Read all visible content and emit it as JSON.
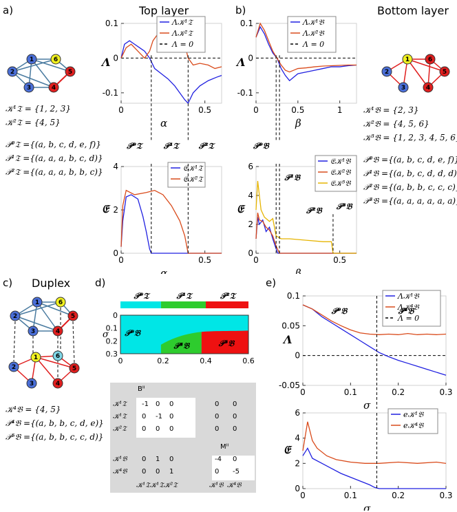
{
  "panels": {
    "a": {
      "label": "a)",
      "title": "Top layer"
    },
    "b": {
      "label": "b)",
      "title": "Bottom layer"
    },
    "c": {
      "label": "c)",
      "title": "Duplex"
    },
    "d": {
      "label": "d)"
    },
    "e": {
      "label": "e)"
    }
  },
  "network_top": {
    "nodes": [
      "1",
      "2",
      "3",
      "4",
      "5",
      "6"
    ]
  },
  "network_bottom": {
    "nodes": [
      "1",
      "2",
      "3",
      "4",
      "5",
      "6"
    ]
  },
  "network_duplex": {
    "top_nodes": [
      "1",
      "2",
      "3",
      "4",
      "5",
      "6"
    ],
    "bottom_nodes": [
      "1",
      "2",
      "3",
      "4",
      "5",
      "6"
    ]
  },
  "text_top": {
    "K1": "𝒦¹𝔗 = {1, 2, 3}",
    "K2": "𝒦²𝔗 = {4, 5}",
    "P0": "𝒫⁰𝔗 ={(a, b, c, d, e, f)}",
    "P1": "𝒫¹𝔗 ={(a, a, a, b, c, d)}",
    "P2": "𝒫²𝔗 ={(a, a, a, b, b, c)}"
  },
  "text_bottom": {
    "K1": "𝒦¹𝔅 = {2, 3}",
    "K2": "𝒦²𝔅 = {4, 5, 6}",
    "K3": "𝒦³𝔅 = {1, 2, 3, 4, 5, 6}",
    "P0": "𝒫⁰𝔅 ={(a, b, c, d, e, f)}",
    "P1": "𝒫¹𝔅 ={(a, b, c, d, d, d)}",
    "P2": "𝒫²𝔅 ={(a, b, b, c, c, c)}",
    "P3": "𝒫³𝔅 ={(a, a, a, a, a, a)}"
  },
  "text_duplex": {
    "K4": "𝒦⁴𝔅 = {4, 5}",
    "P4": "𝒫⁴𝔅 ={(a, b, b, c, d, e)}",
    "P5": "𝒫⁵𝔅 ={(a, b, b, c, c, d)}"
  },
  "colors": {
    "blue": "#1f1fe0",
    "red": "#d94a1a",
    "yellow": "#e6b400",
    "cyan": "#00e6e6",
    "green": "#2ecc2e",
    "red2": "#ee1111",
    "node_blue": "#4a6fd8",
    "node_red": "#e01e1e",
    "node_yellow": "#f0f020",
    "node_cyan": "#7fd6e6"
  },
  "chart_data": [
    {
      "id": "top-lambda",
      "type": "line",
      "xlabel": "α",
      "ylabel": "Λ",
      "xlim": [
        0,
        0.6
      ],
      "ylim": [
        -0.13,
        0.1
      ],
      "xticks": [
        "0",
        "0.5"
      ],
      "yticks": [
        "0.1",
        "0",
        "-0.1"
      ],
      "legend": [
        "Λ𝒦¹𝔗",
        "Λ𝒦²𝔗",
        "Λ = 0"
      ],
      "series": [
        {
          "name": "Λ𝒦¹𝔗",
          "color": "#1f1fe0",
          "x": [
            0,
            0.02,
            0.05,
            0.08,
            0.11,
            0.14,
            0.17,
            0.2,
            0.24,
            0.28,
            0.32,
            0.35,
            0.38,
            0.4,
            0.43,
            0.47,
            0.52,
            0.57,
            0.6
          ],
          "y": [
            0.0,
            0.04,
            0.05,
            0.04,
            0.03,
            0.02,
            0.0,
            -0.03,
            -0.045,
            -0.06,
            -0.08,
            -0.1,
            -0.12,
            -0.13,
            -0.1,
            -0.08,
            -0.065,
            -0.055,
            -0.05
          ]
        },
        {
          "name": "Λ𝒦²𝔗",
          "color": "#d94a1a",
          "x": [
            0,
            0.03,
            0.06,
            0.1,
            0.14,
            0.17,
            0.19,
            0.22,
            0.26,
            0.3,
            0.34,
            0.38,
            0.4,
            0.43,
            0.47,
            0.52,
            0.56,
            0.6
          ],
          "y": [
            0.0,
            0.03,
            0.04,
            0.02,
            0.0,
            0.02,
            0.05,
            0.07,
            0.075,
            0.07,
            0.06,
            0.04,
            0.0,
            -0.02,
            -0.015,
            -0.02,
            -0.03,
            -0.025
          ]
        }
      ]
    },
    {
      "id": "top-entropy",
      "type": "line",
      "xlabel": "α",
      "ylabel": "𝔈",
      "xlim": [
        0,
        0.6
      ],
      "ylim": [
        0,
        4
      ],
      "xticks": [
        "0",
        "0.5"
      ],
      "yticks": [
        "4",
        "2",
        "0"
      ],
      "legend": [
        "𝔈𝒦¹𝔗",
        "𝔈𝒦²𝔗"
      ],
      "phase_labels": [
        "𝒫⁰𝔗",
        "𝒫¹𝔗",
        "𝒫²𝔗"
      ],
      "series": [
        {
          "name": "𝔈𝒦¹𝔗",
          "color": "#1f1fe0",
          "x": [
            0,
            0.01,
            0.03,
            0.06,
            0.1,
            0.13,
            0.15,
            0.17,
            0.18,
            0.6
          ],
          "y": [
            0.3,
            1.5,
            2.6,
            2.7,
            2.5,
            1.7,
            1.0,
            0.2,
            0.0,
            0.0
          ]
        },
        {
          "name": "𝔈𝒦²𝔗",
          "color": "#d94a1a",
          "x": [
            0,
            0.01,
            0.03,
            0.08,
            0.15,
            0.2,
            0.25,
            0.3,
            0.35,
            0.38,
            0.4,
            0.6
          ],
          "y": [
            0.3,
            2.2,
            2.9,
            2.7,
            2.8,
            2.9,
            2.7,
            2.2,
            1.5,
            0.8,
            0.0,
            0.0
          ]
        }
      ]
    },
    {
      "id": "bottom-lambda",
      "type": "line",
      "xlabel": "β",
      "ylabel": "Λ",
      "xlim": [
        0,
        1.2
      ],
      "ylim": [
        -0.13,
        0.1
      ],
      "xticks": [
        "0",
        "0.5",
        "1"
      ],
      "yticks": [
        "0.1",
        "0",
        "-0.1"
      ],
      "legend": [
        "Λ𝒦¹𝔅",
        "Λ𝒦²𝔅",
        "Λ = 0"
      ],
      "series": [
        {
          "name": "Λ𝒦¹𝔅",
          "color": "#1f1fe0",
          "x": [
            0,
            0.05,
            0.1,
            0.15,
            0.2,
            0.25,
            0.3,
            0.35,
            0.4,
            0.45,
            0.5,
            0.6,
            0.7,
            0.8,
            0.9,
            1.0,
            1.1,
            1.2
          ],
          "y": [
            0.06,
            0.09,
            0.07,
            0.04,
            0.015,
            0.0,
            -0.03,
            -0.05,
            -0.065,
            -0.055,
            -0.045,
            -0.04,
            -0.035,
            -0.03,
            -0.025,
            -0.025,
            -0.022,
            -0.02
          ]
        },
        {
          "name": "Λ𝒦²𝔅",
          "color": "#d94a1a",
          "x": [
            0,
            0.05,
            0.1,
            0.15,
            0.2,
            0.25,
            0.3,
            0.35,
            0.4,
            0.45,
            0.5,
            0.6,
            0.7,
            0.8,
            0.9,
            1.0,
            1.1,
            1.2
          ],
          "y": [
            0.06,
            0.1,
            0.08,
            0.05,
            0.02,
            0.0,
            -0.02,
            -0.035,
            -0.04,
            -0.035,
            -0.03,
            -0.028,
            -0.025,
            -0.023,
            -0.022,
            -0.021,
            -0.02,
            -0.02
          ]
        }
      ]
    },
    {
      "id": "bottom-entropy",
      "type": "line",
      "xlabel": "β",
      "ylabel": "𝔈",
      "xlim": [
        0,
        0.6
      ],
      "ylim": [
        0,
        6
      ],
      "xticks": [
        "0",
        "0.5"
      ],
      "yticks": [
        "6",
        "4",
        "2",
        "0"
      ],
      "legend": [
        "𝔈𝒦¹𝔅",
        "𝔈𝒦²𝔅",
        "𝔈𝒦³𝔅"
      ],
      "phase_labels": [
        "𝒫⁰𝔅",
        "𝒫¹𝔅",
        "𝒫²𝔅",
        "𝒫³𝔅"
      ],
      "series": [
        {
          "name": "𝔈𝒦¹𝔅",
          "color": "#1f1fe0",
          "x": [
            0,
            0.01,
            0.02,
            0.04,
            0.06,
            0.08,
            0.1,
            0.12,
            0.13,
            0.6
          ],
          "y": [
            1.0,
            2.5,
            2.0,
            2.3,
            1.5,
            1.8,
            1.0,
            0.3,
            0.0,
            0.0
          ]
        },
        {
          "name": "𝔈𝒦²𝔅",
          "color": "#d94a1a",
          "x": [
            0,
            0.01,
            0.02,
            0.04,
            0.06,
            0.08,
            0.1,
            0.12,
            0.14,
            0.6
          ],
          "y": [
            1.0,
            2.8,
            2.3,
            2.2,
            1.8,
            1.6,
            1.2,
            0.5,
            0.0,
            0.0
          ]
        },
        {
          "name": "𝔈𝒦³𝔅",
          "color": "#e6b400",
          "x": [
            0,
            0.01,
            0.03,
            0.05,
            0.08,
            0.1,
            0.12,
            0.15,
            0.2,
            0.3,
            0.4,
            0.45,
            0.46,
            0.6
          ],
          "y": [
            3.0,
            5.0,
            3.0,
            2.5,
            2.2,
            2.4,
            1.2,
            1.0,
            1.0,
            0.9,
            0.8,
            0.8,
            0.0,
            0.0
          ]
        }
      ]
    },
    {
      "id": "phase-diagram",
      "type": "heatmap",
      "xlabel": "α",
      "ylabel": "σ",
      "xlim": [
        0,
        0.6
      ],
      "ylim": [
        0,
        0.3
      ],
      "xticks": [
        "0",
        "0.2",
        "0.4",
        "0.6"
      ],
      "yticks": [
        "0",
        "0.1",
        "0.2",
        "0.3"
      ],
      "top_bar": [
        {
          "label": "𝒫⁰𝔗",
          "from": 0,
          "to": 0.19,
          "color": "#00e6e6"
        },
        {
          "label": "𝒫¹𝔗",
          "from": 0.19,
          "to": 0.4,
          "color": "#2ecc2e"
        },
        {
          "label": "𝒫²𝔗",
          "from": 0.4,
          "to": 0.6,
          "color": "#ee1111"
        }
      ],
      "regions": [
        {
          "label": "𝒫⁰𝔅",
          "color": "#00e6e6"
        },
        {
          "label": "𝒫⁴𝔅",
          "color": "#2ecc2e"
        },
        {
          "label": "𝒫⁵𝔅",
          "color": "#ee1111"
        }
      ]
    },
    {
      "id": "duplex-lambda",
      "type": "line",
      "xlabel": "σ",
      "ylabel": "Λ",
      "xlim": [
        0,
        0.3
      ],
      "ylim": [
        -0.05,
        0.1
      ],
      "xticks": [
        "0",
        "0.1",
        "0.2",
        "0.3"
      ],
      "yticks": [
        "0.1",
        "0.05",
        "0",
        "-0.05"
      ],
      "legend": [
        "Λ𝒦¹𝔅",
        "Λ𝒦⁴𝔅",
        "Λ = 0"
      ],
      "phase_labels": [
        "𝒫⁰𝔅",
        "𝒫⁴𝔅"
      ],
      "series": [
        {
          "name": "Λ𝒦¹𝔅",
          "color": "#1f1fe0",
          "x": [
            0,
            0.02,
            0.04,
            0.06,
            0.08,
            0.1,
            0.12,
            0.14,
            0.16,
            0.18,
            0.2,
            0.22,
            0.24,
            0.26,
            0.28,
            0.3
          ],
          "y": [
            0.085,
            0.078,
            0.065,
            0.055,
            0.045,
            0.035,
            0.025,
            0.015,
            0.005,
            -0.002,
            -0.008,
            -0.013,
            -0.018,
            -0.023,
            -0.028,
            -0.033
          ]
        },
        {
          "name": "Λ𝒦⁴𝔅",
          "color": "#d94a1a",
          "x": [
            0,
            0.02,
            0.04,
            0.06,
            0.08,
            0.1,
            0.12,
            0.14,
            0.16,
            0.18,
            0.2,
            0.22,
            0.24,
            0.26,
            0.28,
            0.3
          ],
          "y": [
            0.085,
            0.078,
            0.068,
            0.058,
            0.05,
            0.043,
            0.038,
            0.036,
            0.035,
            0.036,
            0.035,
            0.037,
            0.035,
            0.036,
            0.035,
            0.036
          ]
        }
      ]
    },
    {
      "id": "duplex-entropy",
      "type": "line",
      "xlabel": "σ",
      "ylabel": "𝔈",
      "xlim": [
        0,
        0.3
      ],
      "ylim": [
        0,
        6
      ],
      "xticks": [
        "0",
        "0.1",
        "0.2",
        "0.3"
      ],
      "yticks": [
        "6",
        "4",
        "2",
        "0"
      ],
      "legend": [
        "e𝒦¹𝔅",
        "e𝒦⁴𝔅"
      ],
      "series": [
        {
          "name": "e𝒦¹𝔅",
          "color": "#1f1fe0",
          "x": [
            0,
            0.01,
            0.02,
            0.04,
            0.06,
            0.08,
            0.1,
            0.12,
            0.14,
            0.15,
            0.16,
            0.3
          ],
          "y": [
            2.6,
            3.2,
            2.4,
            2.0,
            1.6,
            1.2,
            0.9,
            0.6,
            0.3,
            0.1,
            0.0,
            0.0
          ]
        },
        {
          "name": "e𝒦⁴𝔅",
          "color": "#d94a1a",
          "x": [
            0,
            0.01,
            0.02,
            0.03,
            0.05,
            0.07,
            0.1,
            0.13,
            0.16,
            0.2,
            0.24,
            0.28,
            0.3
          ],
          "y": [
            3.0,
            5.3,
            3.8,
            3.2,
            2.6,
            2.3,
            2.1,
            2.0,
            2.0,
            2.1,
            2.0,
            2.1,
            2.0
          ]
        }
      ]
    }
  ],
  "matrix": {
    "title_B": "Bᴵᴵ",
    "title_M": "Mᴵᴵ",
    "row_labels": [
      "𝒦¹𝔗",
      "𝒦¹𝔗",
      "𝒦²𝔗",
      "𝒦¹𝔅",
      "𝒦⁴𝔅"
    ],
    "col_labels": [
      "𝒦¹𝔗",
      "𝒦¹𝔗",
      "𝒦²𝔗",
      "𝒦¹𝔅",
      "𝒦⁴𝔅"
    ],
    "rows": [
      [
        "-1",
        "0",
        "0",
        "0",
        "0"
      ],
      [
        "0",
        "-1",
        "0",
        "0",
        "0"
      ],
      [
        "0",
        "0",
        "0",
        "0",
        "0"
      ],
      [
        "0",
        "1",
        "0",
        "-4",
        "0"
      ],
      [
        "0",
        "0",
        "1",
        "0",
        "-5"
      ]
    ]
  }
}
